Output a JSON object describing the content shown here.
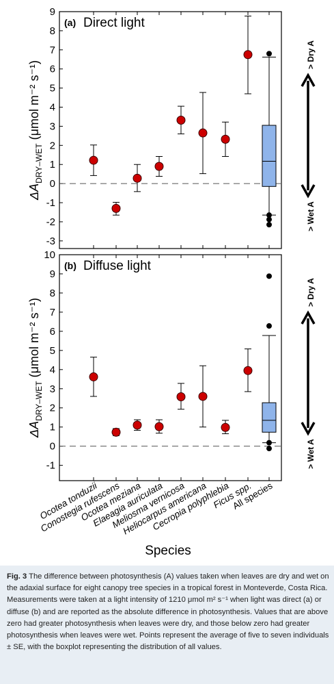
{
  "chart_data": [
    {
      "type": "scatter",
      "panel_label": "(a)",
      "panel_title": "Direct light",
      "ylabel_main": "ΔA",
      "ylabel_sub": "DRY–WET",
      "ylabel_units": "(μmol m⁻² s⁻¹)",
      "ylim": [
        -3.4,
        9
      ],
      "yticks": [
        -3,
        -2,
        -1,
        0,
        1,
        2,
        3,
        4,
        5,
        6,
        7,
        8,
        9
      ],
      "categories": [
        "Ocotea tonduzii",
        "Conostegia rufescens",
        "Ocotea meziana",
        "Elaeagia auriculata",
        "Meliosma vernicosa",
        "Heliocarpus americana",
        "Cecropia polyphlebia",
        "Ficus spp.",
        "All species"
      ],
      "means": [
        1.22,
        -1.3,
        0.28,
        0.9,
        3.32,
        2.65,
        2.32,
        6.75
      ],
      "err_low": [
        0.42,
        -1.65,
        -0.42,
        0.38,
        2.6,
        0.52,
        1.42,
        4.7
      ],
      "err_high": [
        2.02,
        -0.98,
        1.0,
        1.42,
        4.05,
        4.77,
        3.22,
        8.77
      ],
      "boxplot": {
        "whisker_low": -1.65,
        "q1": -0.15,
        "median": 1.17,
        "q3": 3.05,
        "whisker_high": 6.62,
        "outliers": [
          6.8,
          -1.65,
          -1.88,
          -2.15
        ]
      },
      "annotation_top": "> Dry A",
      "annotation_bottom": "> Wet A"
    },
    {
      "type": "scatter",
      "panel_label": "(b)",
      "panel_title": "Diffuse light",
      "ylabel_main": "ΔA",
      "ylabel_sub": "DRY–WET",
      "ylabel_units": "(μmol m⁻² s⁻¹)",
      "ylim": [
        -1.8,
        10
      ],
      "yticks": [
        -1,
        0,
        1,
        2,
        3,
        4,
        5,
        6,
        7,
        8,
        9,
        10
      ],
      "categories": [
        "Ocotea tonduzii",
        "Conostegia rufescens",
        "Ocotea meziana",
        "Elaeagia auriculata",
        "Meliosma vernicosa",
        "Heliocarpus americana",
        "Cecropia polyphlebia",
        "Ficus spp.",
        "All species"
      ],
      "means": [
        3.62,
        0.73,
        1.1,
        1.02,
        2.58,
        2.6,
        0.98,
        3.95
      ],
      "err_low": [
        2.6,
        0.55,
        0.83,
        0.68,
        1.93,
        1.0,
        0.65,
        2.85
      ],
      "err_high": [
        4.65,
        0.92,
        1.38,
        1.38,
        3.28,
        4.2,
        1.35,
        5.08
      ],
      "boxplot": {
        "whisker_low": 0.18,
        "q1": 0.73,
        "median": 1.35,
        "q3": 2.27,
        "whisker_high": 5.78,
        "outliers": [
          8.88,
          6.28,
          0.18,
          -0.12
        ]
      },
      "annotation_top": "> Dry A",
      "annotation_bottom": "> Wet A"
    }
  ],
  "xlabel": "Species",
  "colors": {
    "marker": "#cc0000",
    "box": "#8fb4ea",
    "dashed": "#555555"
  },
  "caption": {
    "label": "Fig. 3",
    "text": " The difference between photosynthesis (A) values taken when leaves are dry and wet on the adaxial surface for eight canopy tree species in a tropical forest in Monteverde, Costa Rica. Measurements were taken at a light intensity of 1210 μmol m² s⁻¹ when light was direct (a) or diffuse (b) and are reported as the absolute difference in photosynthesis. Values that are above zero had greater photosynthesis when leaves were dry, and those below zero had greater photosynthesis when leaves were wet. Points represent the average of five to seven individuals ± SE, with the boxplot representing the distribution of all values."
  }
}
